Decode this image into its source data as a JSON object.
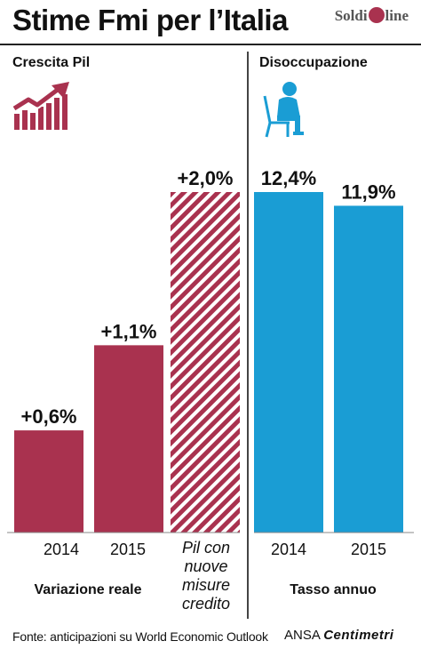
{
  "header": {
    "title": "Stime Fmi per l’Italia",
    "logo_left": "Soldi",
    "logo_mid": "on",
    "logo_right": "line"
  },
  "sections": {
    "growth": "Crescita Pil",
    "unemployment": "Disoccupazione"
  },
  "footer": {
    "source": "Fonte: anticipazioni su World Economic Outlook",
    "agency_a": "ANSA",
    "agency_b": "Centimetri"
  },
  "colors": {
    "growth_bar": "#a9324f",
    "unemployment_bar": "#1a9dd4",
    "hatch_bg": "#ffffff"
  },
  "icons": [
    "growth-chart-icon",
    "sitting-person-icon"
  ],
  "chart_data": [
    {
      "type": "bar",
      "title": "Crescita Pil",
      "categories": [
        "2014",
        "2015",
        "Pil con nuove misure credito"
      ],
      "values": [
        0.6,
        1.1,
        2.0
      ],
      "labels": [
        "+0,6%",
        "+1,1%",
        "+2,0%"
      ],
      "hatched": [
        false,
        false,
        true
      ],
      "xlabel": "Variazione reale",
      "ylim": [
        0,
        2.0
      ]
    },
    {
      "type": "bar",
      "title": "Disoccupazione",
      "categories": [
        "2014",
        "2015"
      ],
      "values": [
        12.4,
        11.9
      ],
      "labels": [
        "12,4%",
        "11,9%"
      ],
      "xlabel": "Tasso annuo",
      "ylim": [
        0,
        12.4
      ]
    }
  ]
}
